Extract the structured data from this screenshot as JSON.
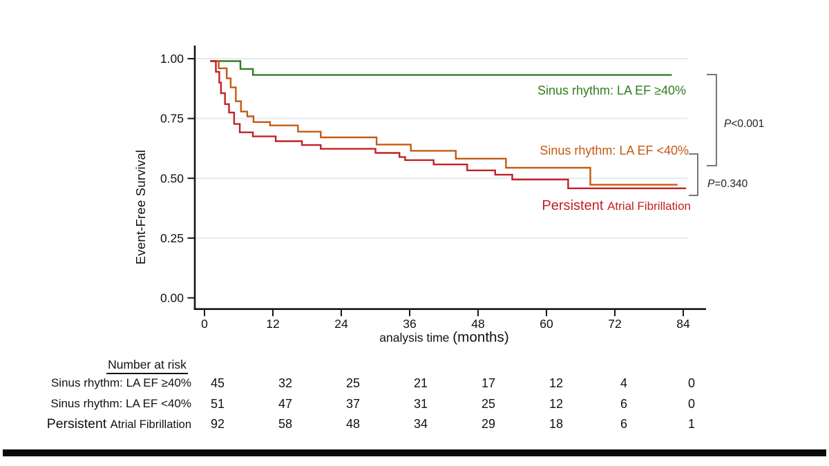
{
  "colors": {
    "green": "#2f7d1f",
    "orange": "#c35a11",
    "red": "#c22026",
    "grid": "#dfe8ee",
    "axis": "#151515",
    "bracket": "#4a4a4a",
    "bar": "#0b0b0b"
  },
  "chart_data": {
    "type": "line",
    "subtype": "kaplan-meier-step",
    "title": "",
    "xlabel": "analysis time (months)",
    "ylabel": "Event-Free Survival",
    "xlim": [
      0,
      84
    ],
    "ylim": [
      0.0,
      1.0
    ],
    "grid": "horizontal-gridlines",
    "legend_position": "labels-near-curves",
    "xticks": [
      {
        "v": 0,
        "label": "0"
      },
      {
        "v": 12,
        "label": "12"
      },
      {
        "v": 24,
        "label": "24"
      },
      {
        "v": 36,
        "label": "36"
      },
      {
        "v": 48,
        "label": "48"
      },
      {
        "v": 60,
        "label": "60"
      },
      {
        "v": 72,
        "label": "72"
      },
      {
        "v": 84,
        "label": "84"
      }
    ],
    "yticks": [
      {
        "v": 0.0,
        "label": "0.00"
      },
      {
        "v": 0.25,
        "label": "0.25"
      },
      {
        "v": 0.5,
        "label": "0.50"
      },
      {
        "v": 0.75,
        "label": "0.75"
      },
      {
        "v": 1.0,
        "label": "1.00"
      }
    ],
    "series": [
      {
        "name": "Sinus rhythm: LA EF ≥40%",
        "color": "#2f7d1f",
        "end_t": 82,
        "steps": [
          [
            1,
            0.99
          ],
          [
            6.3,
            0.957
          ],
          [
            8.5,
            0.932
          ]
        ]
      },
      {
        "name": "Sinus rhythm: LA EF <40%",
        "color": "#c35a11",
        "end_t": 83,
        "steps": [
          [
            1,
            0.99
          ],
          [
            2.5,
            0.96
          ],
          [
            3.9,
            0.918
          ],
          [
            4.6,
            0.88
          ],
          [
            5.5,
            0.822
          ],
          [
            6.4,
            0.779
          ],
          [
            7.5,
            0.759
          ],
          [
            8.6,
            0.735
          ],
          [
            11.5,
            0.721
          ],
          [
            16.4,
            0.695
          ],
          [
            20.4,
            0.671
          ],
          [
            30.2,
            0.641
          ],
          [
            36.2,
            0.615
          ],
          [
            44.1,
            0.582
          ],
          [
            52.9,
            0.544
          ],
          [
            67.7,
            0.473
          ]
        ]
      },
      {
        "name": "Persistent Atrial Fibrillation",
        "color": "#c22026",
        "end_t": 84.5,
        "steps": [
          [
            1,
            0.99
          ],
          [
            2.0,
            0.945
          ],
          [
            2.6,
            0.9
          ],
          [
            2.9,
            0.856
          ],
          [
            3.6,
            0.81
          ],
          [
            4.3,
            0.775
          ],
          [
            5.2,
            0.727
          ],
          [
            6.2,
            0.692
          ],
          [
            8.5,
            0.675
          ],
          [
            12.5,
            0.655
          ],
          [
            17.1,
            0.639
          ],
          [
            20.4,
            0.623
          ],
          [
            30,
            0.606
          ],
          [
            34.2,
            0.589
          ],
          [
            35.2,
            0.576
          ],
          [
            40.2,
            0.558
          ],
          [
            46.1,
            0.533
          ],
          [
            51,
            0.515
          ],
          [
            54,
            0.495
          ],
          [
            63.8,
            0.458
          ]
        ]
      }
    ],
    "annotations": [
      {
        "text": "P<0.001",
        "compares": "Sinus rhythm vs others"
      },
      {
        "text": "P=0.340",
        "compares": "LA EF <40% vs Persistent AF"
      }
    ]
  },
  "labels": {
    "ylabel": "Event-Free Survival",
    "xlabel_parts": [
      {
        "t": "analysis time "
      },
      {
        "t": "(months)",
        "big": true
      }
    ],
    "legend_green": "Sinus rhythm: LA EF ≥40%",
    "legend_orange": "Sinus rhythm: LA EF <40%",
    "legend_red_parts": [
      {
        "t": "Persistent ",
        "big": true
      },
      {
        "t": "Atrial Fibrillation"
      }
    ],
    "pval1_parts": [
      {
        "t": "P",
        "italic": true
      },
      {
        "t": "<0.001"
      }
    ],
    "pval2_parts": [
      {
        "t": "P",
        "italic": true
      },
      {
        "t": "=0.340"
      }
    ]
  },
  "risk_table": {
    "header": "Number at risk",
    "times": [
      0,
      12,
      24,
      36,
      48,
      60,
      72,
      84
    ],
    "rows": [
      {
        "label": "Sinus rhythm: LA EF ≥40%",
        "counts": [
          45,
          32,
          25,
          21,
          17,
          12,
          4,
          0
        ]
      },
      {
        "label": "Sinus rhythm: LA EF <40%",
        "counts": [
          51,
          47,
          37,
          31,
          25,
          12,
          6,
          0
        ]
      },
      {
        "label": "Persistent Atrial Fibrillation",
        "label_parts": [
          {
            "t": "Persistent ",
            "big": true
          },
          {
            "t": "Atrial Fibrillation"
          }
        ],
        "counts": [
          92,
          58,
          48,
          34,
          29,
          18,
          6,
          1
        ]
      }
    ]
  }
}
